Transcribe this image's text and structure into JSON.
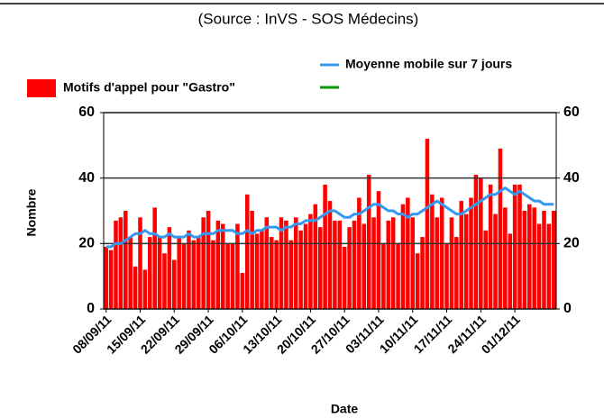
{
  "chart_data": {
    "type": "bar",
    "title": "(Source : InVS - SOS Médecins)",
    "xlabel": "Date",
    "ylabel": "Nombre",
    "categories": [
      "08/09/11",
      null,
      null,
      null,
      null,
      null,
      null,
      "15/09/11",
      null,
      null,
      null,
      null,
      null,
      null,
      "22/09/11",
      null,
      null,
      null,
      null,
      null,
      null,
      "29/09/11",
      null,
      null,
      null,
      null,
      null,
      null,
      "06/10/11",
      null,
      null,
      null,
      null,
      null,
      null,
      "13/10/11",
      null,
      null,
      null,
      null,
      null,
      null,
      "20/10/11",
      null,
      null,
      null,
      null,
      null,
      null,
      "27/10/11",
      null,
      null,
      null,
      null,
      null,
      null,
      "03/11/11",
      null,
      null,
      null,
      null,
      null,
      null,
      "10/11/11",
      null,
      null,
      null,
      null,
      null,
      null,
      "17/11/11",
      null,
      null,
      null,
      null,
      null,
      null,
      "24/11/11",
      null,
      null,
      null,
      null,
      null,
      null,
      "01/12/11",
      null,
      null,
      null,
      null,
      null,
      null,
      null,
      null
    ],
    "series": [
      {
        "name": "Motifs d'appel pour \"Gastro\"",
        "type": "bar",
        "color": "#ff0000",
        "values": [
          19,
          18,
          27,
          28,
          30,
          22,
          13,
          28,
          12,
          22,
          31,
          22,
          17,
          25,
          15,
          22,
          20,
          24,
          21,
          22,
          28,
          30,
          21,
          27,
          26,
          20,
          20,
          26,
          11,
          35,
          30,
          23,
          24,
          28,
          22,
          21,
          28,
          27,
          21,
          28,
          24,
          26,
          29,
          32,
          25,
          38,
          33,
          27,
          27,
          19,
          25,
          27,
          34,
          26,
          41,
          28,
          36,
          20,
          27,
          28,
          20,
          32,
          34,
          28,
          17,
          22,
          52,
          35,
          28,
          34,
          20,
          28,
          22,
          33,
          29,
          34,
          41,
          40,
          24,
          38,
          29,
          49,
          31,
          23,
          38,
          38,
          30,
          32,
          31,
          26,
          30,
          26,
          30
        ]
      },
      {
        "name": "Moyenne mobile sur 7 jours",
        "type": "line",
        "color": "#3399ee",
        "values": [
          19,
          19,
          20,
          20,
          21,
          22,
          23,
          23,
          24,
          23,
          23,
          22,
          22,
          23,
          22,
          22,
          22,
          23,
          22,
          22,
          23,
          23,
          23,
          24,
          24,
          24,
          24,
          23,
          23,
          24,
          23,
          24,
          24,
          25,
          25,
          25,
          24,
          25,
          25,
          26,
          26,
          27,
          27,
          27,
          28,
          29,
          30,
          30,
          29,
          28,
          28,
          29,
          29,
          30,
          31,
          32,
          32,
          31,
          30,
          30,
          29,
          29,
          28,
          29,
          29,
          30,
          31,
          32,
          33,
          32,
          31,
          30,
          29,
          29,
          30,
          31,
          32,
          33,
          34,
          35,
          35,
          36,
          37,
          36,
          35,
          36,
          35,
          34,
          33,
          33,
          32,
          32,
          32
        ]
      }
    ],
    "ylim": [
      0,
      60
    ],
    "yticks": [
      0,
      20,
      40,
      60
    ],
    "y2lim": [
      0,
      60
    ],
    "y2ticks": [
      0,
      20,
      40,
      60
    ],
    "grid": true
  }
}
